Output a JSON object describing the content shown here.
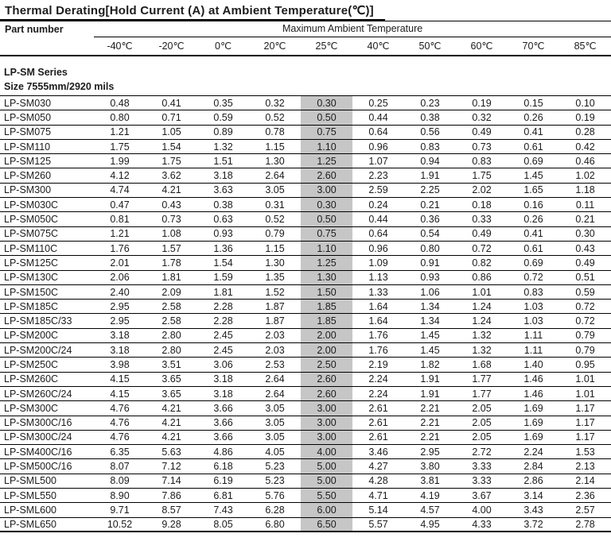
{
  "title": "Thermal Derating[Hold Current (A) at Ambient Temperature(℃)]",
  "table": {
    "part_number_header": "Part number",
    "group_header": "Maximum Ambient Temperature",
    "temperature_columns": [
      "-40℃",
      "-20℃",
      "0℃",
      "20℃",
      "25℃",
      "40℃",
      "50℃",
      "60℃",
      "70℃",
      "85℃"
    ],
    "highlighted_column": "25℃",
    "highlight_color": "#c6c6c6",
    "section": {
      "series_label": "LP-SM Series",
      "size_label": "Size 7555mm/2920 mils"
    },
    "rows": [
      {
        "part": "LP-SM030",
        "values": [
          "0.48",
          "0.41",
          "0.35",
          "0.32",
          "0.30",
          "0.25",
          "0.23",
          "0.19",
          "0.15",
          "0.10"
        ]
      },
      {
        "part": "LP-SM050",
        "values": [
          "0.80",
          "0.71",
          "0.59",
          "0.52",
          "0.50",
          "0.44",
          "0.38",
          "0.32",
          "0.26",
          "0.19"
        ]
      },
      {
        "part": "LP-SM075",
        "values": [
          "1.21",
          "1.05",
          "0.89",
          "0.78",
          "0.75",
          "0.64",
          "0.56",
          "0.49",
          "0.41",
          "0.28"
        ]
      },
      {
        "part": "LP-SM110",
        "values": [
          "1.75",
          "1.54",
          "1.32",
          "1.15",
          "1.10",
          "0.96",
          "0.83",
          "0.73",
          "0.61",
          "0.42"
        ]
      },
      {
        "part": "LP-SM125",
        "values": [
          "1.99",
          "1.75",
          "1.51",
          "1.30",
          "1.25",
          "1.07",
          "0.94",
          "0.83",
          "0.69",
          "0.46"
        ]
      },
      {
        "part": "LP-SM260",
        "values": [
          "4.12",
          "3.62",
          "3.18",
          "2.64",
          "2.60",
          "2.23",
          "1.91",
          "1.75",
          "1.45",
          "1.02"
        ]
      },
      {
        "part": "LP-SM300",
        "values": [
          "4.74",
          "4.21",
          "3.63",
          "3.05",
          "3.00",
          "2.59",
          "2.25",
          "2.02",
          "1.65",
          "1.18"
        ]
      },
      {
        "part": "LP-SM030C",
        "values": [
          "0.47",
          "0.43",
          "0.38",
          "0.31",
          "0.30",
          "0.24",
          "0.21",
          "0.18",
          "0.16",
          "0.11"
        ]
      },
      {
        "part": "LP-SM050C",
        "values": [
          "0.81",
          "0.73",
          "0.63",
          "0.52",
          "0.50",
          "0.44",
          "0.36",
          "0.33",
          "0.26",
          "0.21"
        ]
      },
      {
        "part": "LP-SM075C",
        "values": [
          "1.21",
          "1.08",
          "0.93",
          "0.79",
          "0.75",
          "0.64",
          "0.54",
          "0.49",
          "0.41",
          "0.30"
        ]
      },
      {
        "part": "LP-SM110C",
        "values": [
          "1.76",
          "1.57",
          "1.36",
          "1.15",
          "1.10",
          "0.96",
          "0.80",
          "0.72",
          "0.61",
          "0.43"
        ]
      },
      {
        "part": "LP-SM125C",
        "values": [
          "2.01",
          "1.78",
          "1.54",
          "1.30",
          "1.25",
          "1.09",
          "0.91",
          "0.82",
          "0.69",
          "0.49"
        ]
      },
      {
        "part": "LP-SM130C",
        "values": [
          "2.06",
          "1.81",
          "1.59",
          "1.35",
          "1.30",
          "1.13",
          "0.93",
          "0.86",
          "0.72",
          "0.51"
        ]
      },
      {
        "part": "LP-SM150C",
        "values": [
          "2.40",
          "2.09",
          "1.81",
          "1.52",
          "1.50",
          "1.33",
          "1.06",
          "1.01",
          "0.83",
          "0.59"
        ]
      },
      {
        "part": "LP-SM185C",
        "values": [
          "2.95",
          "2.58",
          "2.28",
          "1.87",
          "1.85",
          "1.64",
          "1.34",
          "1.24",
          "1.03",
          "0.72"
        ]
      },
      {
        "part": "LP-SM185C/33",
        "values": [
          "2.95",
          "2.58",
          "2.28",
          "1.87",
          "1.85",
          "1.64",
          "1.34",
          "1.24",
          "1.03",
          "0.72"
        ]
      },
      {
        "part": "LP-SM200C",
        "values": [
          "3.18",
          "2.80",
          "2.45",
          "2.03",
          "2.00",
          "1.76",
          "1.45",
          "1.32",
          "1.11",
          "0.79"
        ]
      },
      {
        "part": "LP-SM200C/24",
        "values": [
          "3.18",
          "2.80",
          "2.45",
          "2.03",
          "2.00",
          "1.76",
          "1.45",
          "1.32",
          "1.11",
          "0.79"
        ]
      },
      {
        "part": "LP-SM250C",
        "values": [
          "3.98",
          "3.51",
          "3.06",
          "2.53",
          "2.50",
          "2.19",
          "1.82",
          "1.68",
          "1.40",
          "0.95"
        ]
      },
      {
        "part": "LP-SM260C",
        "values": [
          "4.15",
          "3.65",
          "3.18",
          "2.64",
          "2.60",
          "2.24",
          "1.91",
          "1.77",
          "1.46",
          "1.01"
        ]
      },
      {
        "part": "LP-SM260C/24",
        "values": [
          "4.15",
          "3.65",
          "3.18",
          "2.64",
          "2.60",
          "2.24",
          "1.91",
          "1.77",
          "1.46",
          "1.01"
        ]
      },
      {
        "part": "LP-SM300C",
        "values": [
          "4.76",
          "4.21",
          "3.66",
          "3.05",
          "3.00",
          "2.61",
          "2.21",
          "2.05",
          "1.69",
          "1.17"
        ]
      },
      {
        "part": "LP-SM300C/16",
        "values": [
          "4.76",
          "4.21",
          "3.66",
          "3.05",
          "3.00",
          "2.61",
          "2.21",
          "2.05",
          "1.69",
          "1.17"
        ]
      },
      {
        "part": "LP-SM300C/24",
        "values": [
          "4.76",
          "4.21",
          "3.66",
          "3.05",
          "3.00",
          "2.61",
          "2.21",
          "2.05",
          "1.69",
          "1.17"
        ]
      },
      {
        "part": "LP-SM400C/16",
        "values": [
          "6.35",
          "5.63",
          "4.86",
          "4.05",
          "4.00",
          "3.46",
          "2.95",
          "2.72",
          "2.24",
          "1.53"
        ]
      },
      {
        "part": "LP-SM500C/16",
        "values": [
          "8.07",
          "7.12",
          "6.18",
          "5.23",
          "5.00",
          "4.27",
          "3.80",
          "3.33",
          "2.84",
          "2.13"
        ]
      },
      {
        "part": "LP-SML500",
        "values": [
          "8.09",
          "7.14",
          "6.19",
          "5.23",
          "5.00",
          "4.28",
          "3.81",
          "3.33",
          "2.86",
          "2.14"
        ]
      },
      {
        "part": "LP-SML550",
        "values": [
          "8.90",
          "7.86",
          "6.81",
          "5.76",
          "5.50",
          "4.71",
          "4.19",
          "3.67",
          "3.14",
          "2.36"
        ]
      },
      {
        "part": "LP-SML600",
        "values": [
          "9.71",
          "8.57",
          "7.43",
          "6.28",
          "6.00",
          "5.14",
          "4.57",
          "4.00",
          "3.43",
          "2.57"
        ]
      },
      {
        "part": "LP-SML650",
        "values": [
          "10.52",
          "9.28",
          "8.05",
          "6.80",
          "6.50",
          "5.57",
          "4.95",
          "4.33",
          "3.72",
          "2.78"
        ]
      }
    ]
  }
}
